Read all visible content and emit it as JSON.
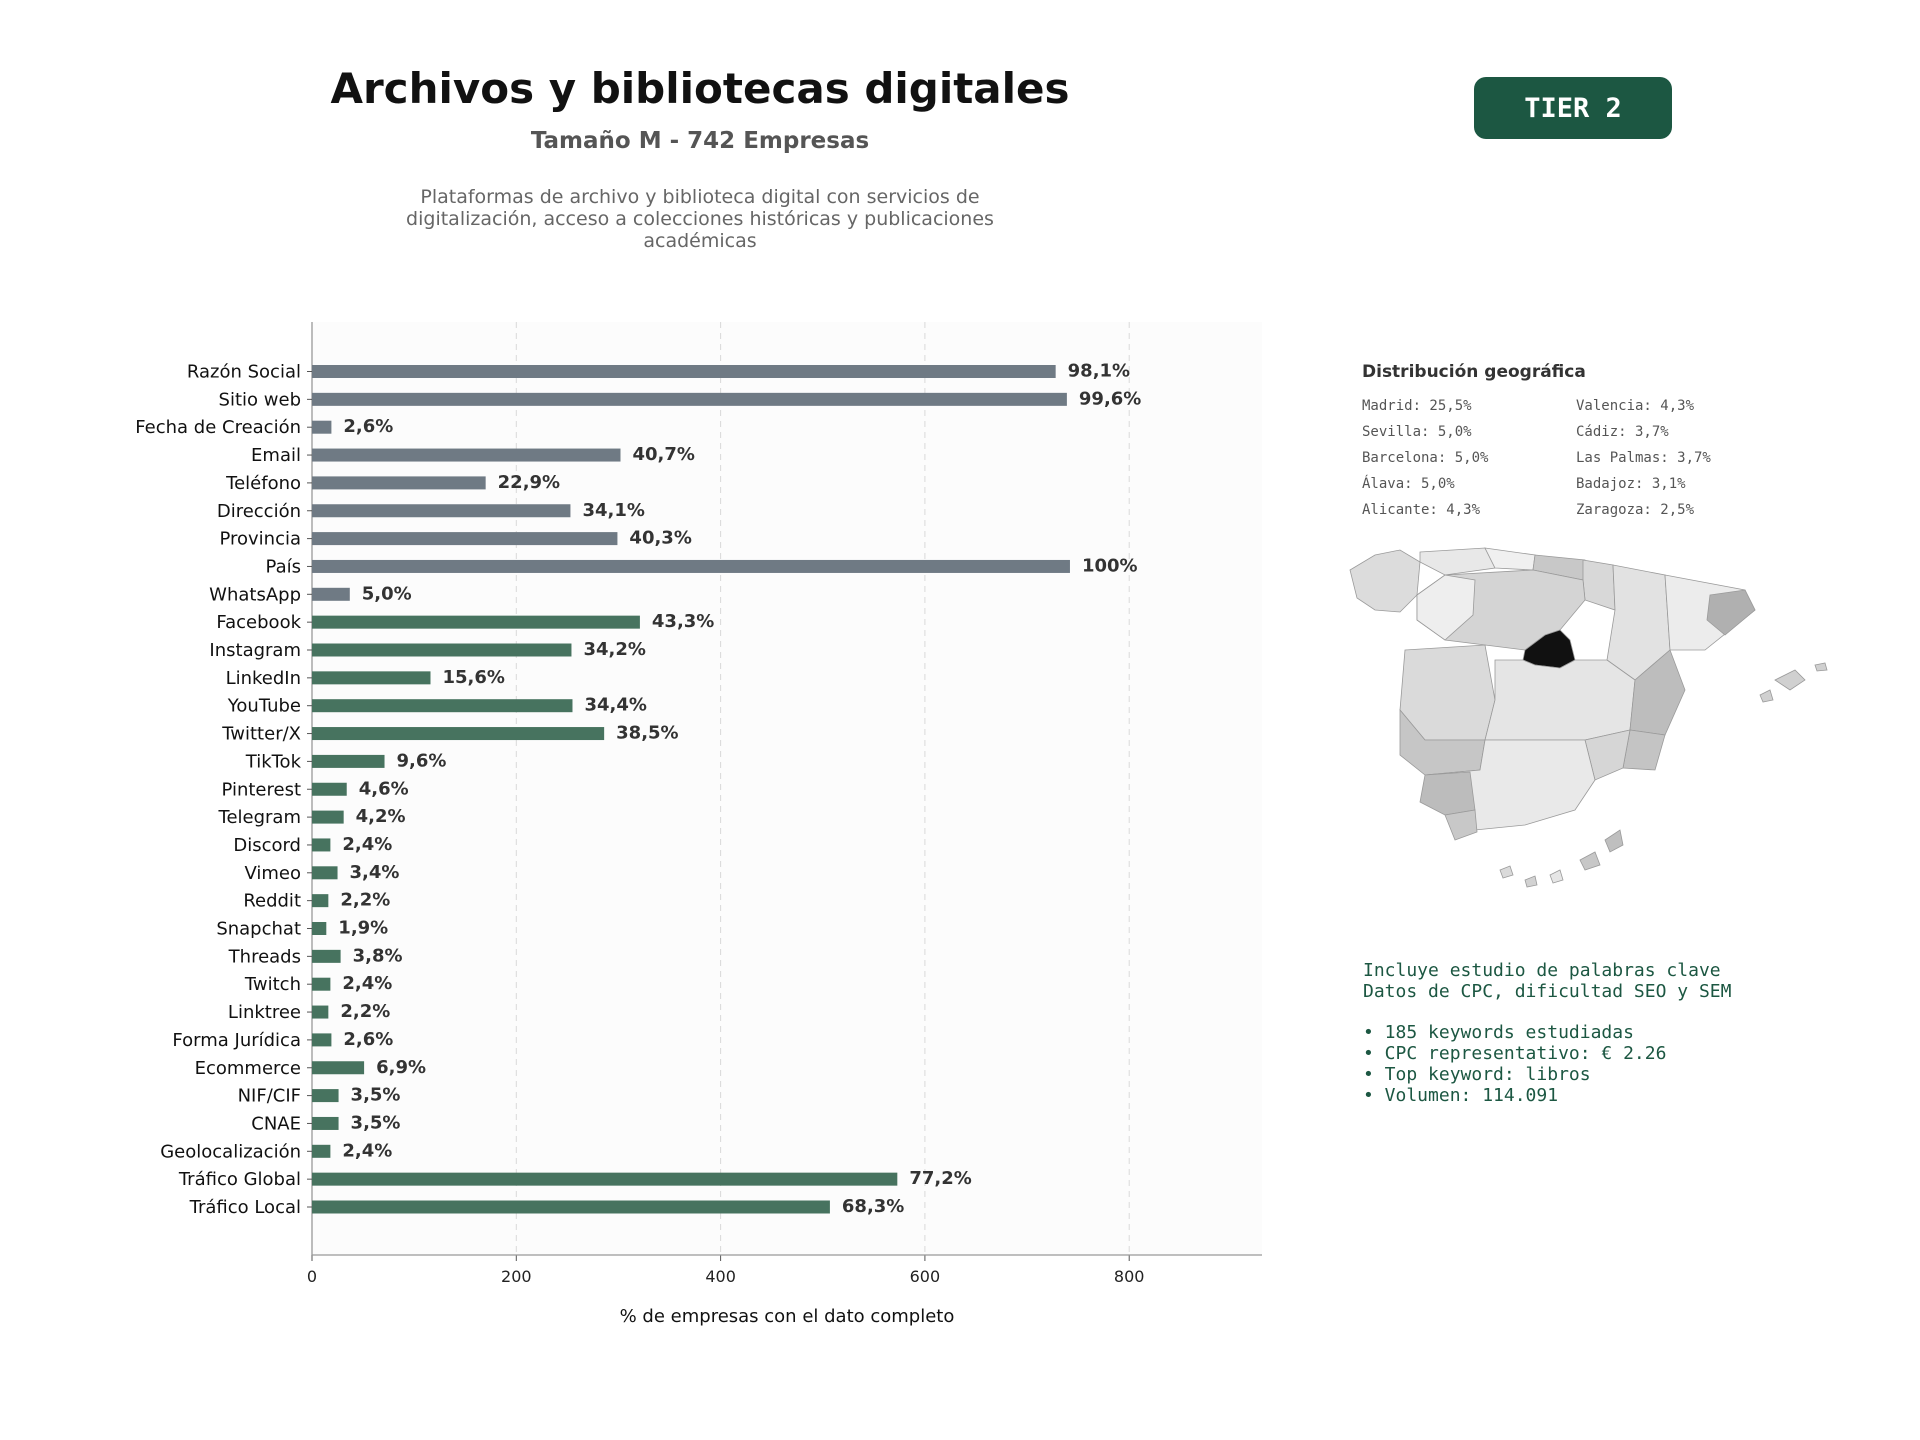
{
  "header": {
    "title": "Archivos y bibliotecas digitales",
    "subtitle": "Tamaño M - 742 Empresas",
    "description": "Plataformas de archivo y biblioteca digital con servicios de digitalización, acceso a colecciones históricas y publicaciones académicas",
    "tier": "TIER 2"
  },
  "colors": {
    "basic_fields": "#6f7a84",
    "digital_fields": "#47735f",
    "tier_badge": "#1c5742",
    "madrid_highlight": "#111111"
  },
  "chart_data": {
    "type": "bar",
    "orientation": "horizontal",
    "xlabel": "% de empresas con el dato completo",
    "ylabel": "",
    "xlim": [
      0,
      930
    ],
    "xticks": [
      0,
      200,
      400,
      600,
      800
    ],
    "grid": "vertical dashed",
    "categories": [
      "Razón Social",
      "Sitio web",
      "Fecha de Creación",
      "Email",
      "Teléfono",
      "Dirección",
      "Provincia",
      "País",
      "WhatsApp",
      "Facebook",
      "Instagram",
      "LinkedIn",
      "YouTube",
      "Twitter/X",
      "TikTok",
      "Pinterest",
      "Telegram",
      "Discord",
      "Vimeo",
      "Reddit",
      "Snapchat",
      "Threads",
      "Twitch",
      "Linktree",
      "Forma Jurídica",
      "Ecommerce",
      "NIF/CIF",
      "CNAE",
      "Geolocalización",
      "Tráfico Global",
      "Tráfico Local"
    ],
    "values": [
      728,
      739,
      19,
      302,
      170,
      253,
      299,
      742,
      37,
      321,
      254,
      116,
      255,
      286,
      71,
      34,
      31,
      18,
      25,
      16,
      14,
      28,
      18,
      16,
      19,
      51,
      26,
      26,
      18,
      573,
      507
    ],
    "labels": [
      "98,1%",
      "99,6%",
      "2,6%",
      "40,7%",
      "22,9%",
      "34,1%",
      "40,3%",
      "100%",
      "5,0%",
      "43,3%",
      "34,2%",
      "15,6%",
      "34,4%",
      "38,5%",
      "9,6%",
      "4,6%",
      "4,2%",
      "2,4%",
      "3,4%",
      "2,2%",
      "1,9%",
      "3,8%",
      "2,4%",
      "2,2%",
      "2,6%",
      "6,9%",
      "3,5%",
      "3,5%",
      "2,4%",
      "77,2%",
      "68,3%"
    ],
    "groups": [
      "basic",
      "basic",
      "basic",
      "basic",
      "basic",
      "basic",
      "basic",
      "basic",
      "basic",
      "digital",
      "digital",
      "digital",
      "digital",
      "digital",
      "digital",
      "digital",
      "digital",
      "digital",
      "digital",
      "digital",
      "digital",
      "digital",
      "digital",
      "digital",
      "digital",
      "digital",
      "digital",
      "digital",
      "digital",
      "digital",
      "digital"
    ]
  },
  "geo": {
    "title": "Distribución geográfica",
    "items": [
      "Madrid: 25,5%",
      "Valencia: 4,3%",
      "Sevilla: 5,0%",
      "Cádiz: 3,7%",
      "Barcelona: 5,0%",
      "Las Palmas: 3,7%",
      "Álava: 5,0%",
      "Badajoz: 3,1%",
      "Alicante: 4,3%",
      "Zaragoza: 2,5%"
    ]
  },
  "seo": {
    "line1": "Incluye estudio de palabras clave",
    "line2": "Datos de CPC, dificultad SEO y SEM",
    "bullets": [
      "• 185 keywords estudiadas",
      "• CPC representativo: € 2.26",
      "• Top keyword: libros",
      "• Volumen: 114.091"
    ]
  }
}
